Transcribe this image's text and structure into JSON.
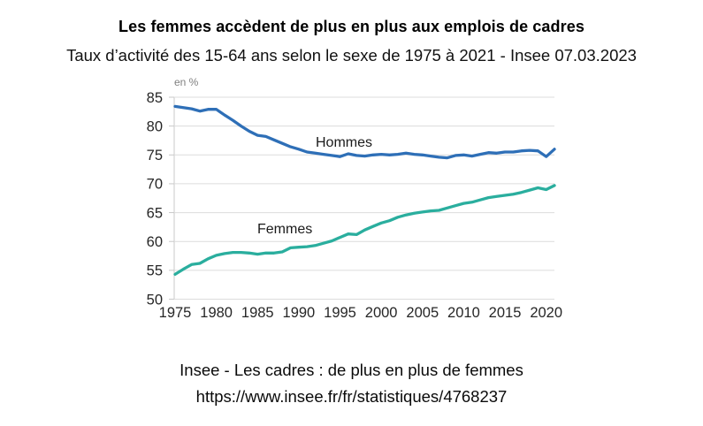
{
  "header": {
    "title": "Les femmes accèdent de plus en plus aux emplois de cadres",
    "subtitle": "Taux d’activité des 15-64 ans selon le sexe de 1975 à 2021 - Insee 07.03.2023"
  },
  "footer": {
    "source": "Insee - Les cadres : de plus en plus de femmes",
    "url": "https://www.insee.fr/fr/statistiques/4768237"
  },
  "colors": {
    "hommes_line": "#2e6fb7",
    "femmes_line": "#2aae9e",
    "gridline": "#dcdcdc",
    "axis": "#c9c9c9",
    "tick_text": "#262626"
  },
  "chart_data": {
    "type": "line",
    "unit_label": "en %",
    "xlabel": "",
    "ylabel": "en %",
    "ylim": [
      50,
      85
    ],
    "yticks": [
      85,
      80,
      75,
      70,
      65,
      60,
      55,
      50
    ],
    "xticks": [
      1975,
      1980,
      1985,
      1990,
      1995,
      2000,
      2005,
      2010,
      2015,
      2020
    ],
    "grid": "horizontal",
    "legend": "inline-labels",
    "x": [
      1975,
      1976,
      1977,
      1978,
      1979,
      1980,
      1981,
      1982,
      1983,
      1984,
      1985,
      1986,
      1987,
      1988,
      1989,
      1990,
      1991,
      1992,
      1993,
      1994,
      1995,
      1996,
      1997,
      1998,
      1999,
      2000,
      2001,
      2002,
      2003,
      2004,
      2005,
      2006,
      2007,
      2008,
      2009,
      2010,
      2011,
      2012,
      2013,
      2014,
      2015,
      2016,
      2017,
      2018,
      2019,
      2020,
      2021
    ],
    "series": [
      {
        "name": "Hommes",
        "color": "#2e6fb7",
        "values": [
          83.4,
          83.2,
          83.0,
          82.6,
          82.9,
          82.9,
          81.9,
          81.0,
          80.0,
          79.1,
          78.4,
          78.2,
          77.6,
          77.0,
          76.4,
          76.0,
          75.5,
          75.3,
          75.1,
          74.9,
          74.7,
          75.2,
          74.9,
          74.8,
          75.0,
          75.1,
          75.0,
          75.1,
          75.3,
          75.1,
          75.0,
          74.8,
          74.6,
          74.5,
          74.9,
          75.0,
          74.8,
          75.1,
          75.4,
          75.3,
          75.5,
          75.5,
          75.7,
          75.8,
          75.7,
          74.7,
          76.0
        ]
      },
      {
        "name": "Femmes",
        "color": "#2aae9e",
        "values": [
          54.3,
          55.2,
          56.0,
          56.2,
          57.0,
          57.6,
          57.9,
          58.1,
          58.1,
          58.0,
          57.8,
          58.0,
          58.0,
          58.2,
          58.9,
          59.0,
          59.1,
          59.3,
          59.7,
          60.1,
          60.7,
          61.3,
          61.2,
          62.0,
          62.6,
          63.2,
          63.6,
          64.2,
          64.6,
          64.9,
          65.1,
          65.3,
          65.4,
          65.8,
          66.2,
          66.6,
          66.8,
          67.2,
          67.6,
          67.8,
          68.0,
          68.2,
          68.5,
          68.9,
          69.3,
          69.0,
          69.7
        ]
      }
    ]
  }
}
